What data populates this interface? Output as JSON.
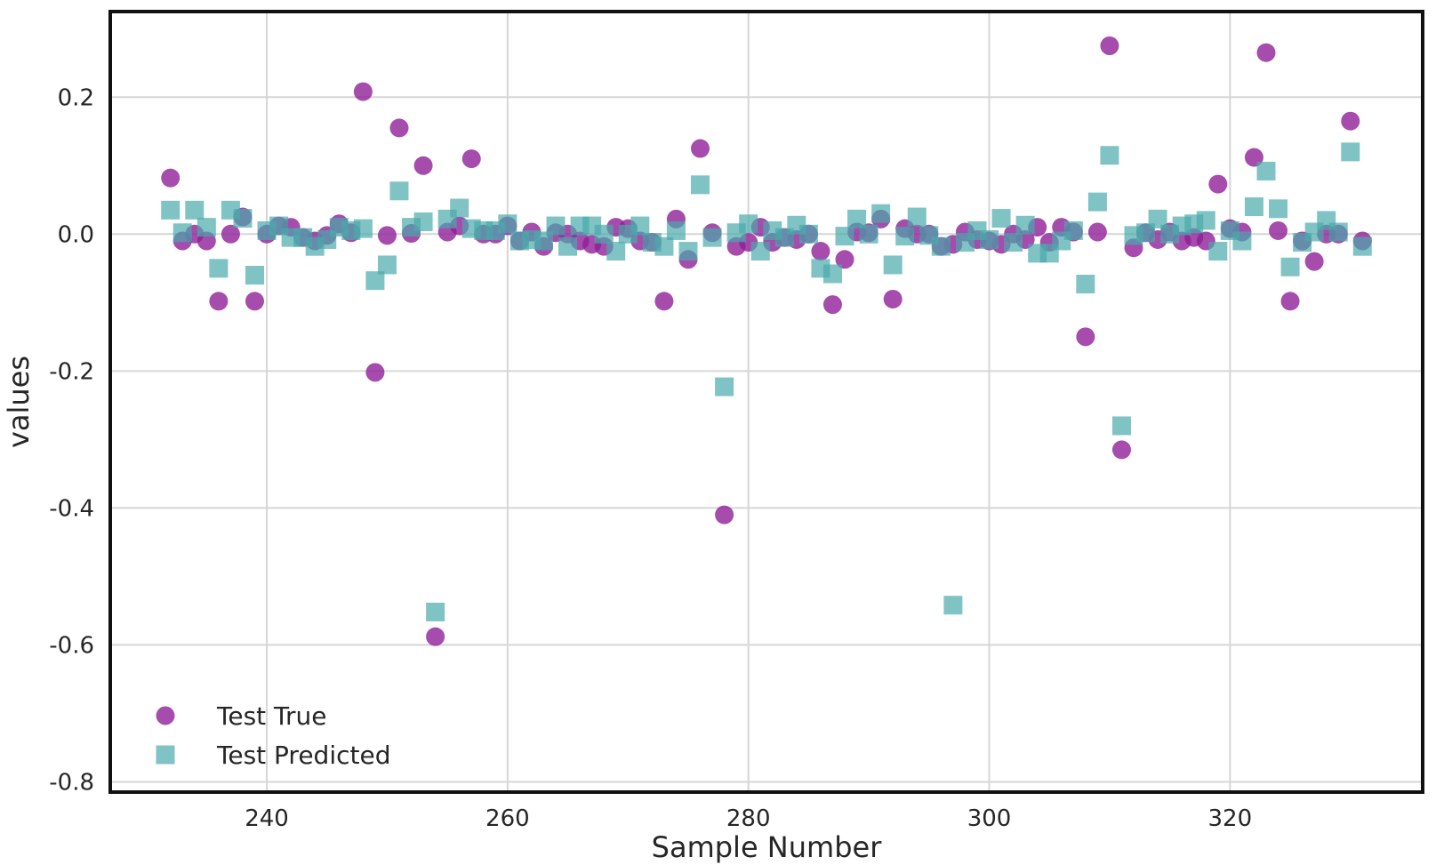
{
  "chart_data": {
    "type": "scatter",
    "title": "",
    "xlabel": "Sample Number",
    "ylabel": "values",
    "xlim": [
      227,
      336
    ],
    "ylim": [
      -0.815,
      0.325
    ],
    "xticks": [
      240,
      260,
      280,
      300,
      320
    ],
    "xtick_labels": [
      "240",
      "260",
      "280",
      "300",
      "320"
    ],
    "yticks": [
      0.2,
      0.0,
      -0.2,
      -0.4,
      -0.6,
      -0.8
    ],
    "ytick_labels": [
      "0.2",
      "0.0",
      "-0.2",
      "-0.4",
      "-0.6",
      "-0.8"
    ],
    "grid": true,
    "legend_position": "lower-left",
    "series": [
      {
        "name": "Test True",
        "marker": "circle",
        "color": "#8e1f97",
        "x": [
          232,
          233,
          234,
          235,
          236,
          237,
          238,
          239,
          240,
          241,
          242,
          243,
          244,
          245,
          246,
          247,
          248,
          249,
          250,
          251,
          252,
          253,
          254,
          255,
          256,
          257,
          258,
          259,
          260,
          261,
          262,
          263,
          264,
          265,
          266,
          267,
          268,
          269,
          270,
          271,
          272,
          273,
          274,
          275,
          276,
          277,
          278,
          279,
          280,
          281,
          282,
          283,
          284,
          285,
          286,
          287,
          288,
          289,
          290,
          291,
          292,
          293,
          294,
          295,
          296,
          297,
          298,
          299,
          300,
          301,
          302,
          303,
          304,
          305,
          306,
          307,
          308,
          309,
          310,
          311,
          312,
          313,
          314,
          315,
          316,
          317,
          318,
          319,
          320,
          321,
          322,
          323,
          324,
          325,
          326,
          327,
          328,
          329,
          330,
          331
        ],
        "values": [
          0.082,
          -0.01,
          0.0,
          -0.01,
          -0.098,
          0.0,
          0.025,
          -0.098,
          0.0,
          0.012,
          0.01,
          -0.005,
          -0.01,
          -0.002,
          0.015,
          0.002,
          0.208,
          -0.202,
          -0.002,
          0.155,
          0.001,
          0.1,
          -0.588,
          0.003,
          0.012,
          0.11,
          0.0,
          0.0,
          0.012,
          -0.01,
          0.003,
          -0.018,
          0.002,
          0.0,
          -0.01,
          -0.015,
          -0.018,
          0.01,
          0.008,
          -0.01,
          -0.012,
          -0.098,
          0.022,
          -0.037,
          0.125,
          0.002,
          -0.41,
          -0.018,
          -0.012,
          0.01,
          -0.012,
          -0.005,
          -0.008,
          0.0,
          -0.025,
          -0.103,
          -0.037,
          0.003,
          0.002,
          0.022,
          -0.095,
          0.008,
          0.0,
          0.0,
          -0.018,
          -0.015,
          0.003,
          -0.008,
          -0.01,
          -0.015,
          0.0,
          -0.008,
          0.01,
          -0.012,
          0.01,
          0.003,
          -0.15,
          0.003,
          0.275,
          -0.315,
          -0.02,
          0.002,
          -0.008,
          0.003,
          -0.01,
          -0.005,
          -0.01,
          0.073,
          0.008,
          0.003,
          0.112,
          0.265,
          0.005,
          -0.098,
          -0.01,
          -0.04,
          0.0,
          0.0,
          0.165,
          -0.01
        ]
      },
      {
        "name": "Test Predicted",
        "marker": "square",
        "color": "#4aa9ab",
        "x": [
          232,
          233,
          234,
          235,
          236,
          237,
          238,
          239,
          240,
          241,
          242,
          243,
          244,
          245,
          246,
          247,
          248,
          249,
          250,
          251,
          252,
          253,
          254,
          255,
          256,
          257,
          258,
          259,
          260,
          261,
          262,
          263,
          264,
          265,
          266,
          267,
          268,
          269,
          270,
          271,
          272,
          273,
          274,
          275,
          276,
          277,
          278,
          279,
          280,
          281,
          282,
          283,
          284,
          285,
          286,
          287,
          288,
          289,
          290,
          291,
          292,
          293,
          294,
          295,
          296,
          297,
          298,
          299,
          300,
          301,
          302,
          303,
          304,
          305,
          306,
          307,
          308,
          309,
          310,
          311,
          312,
          313,
          314,
          315,
          316,
          317,
          318,
          319,
          320,
          321,
          322,
          323,
          324,
          325,
          326,
          327,
          328,
          329,
          330,
          331
        ],
        "values": [
          0.035,
          0.002,
          0.035,
          0.01,
          -0.05,
          0.035,
          0.023,
          -0.06,
          0.005,
          0.012,
          -0.005,
          -0.005,
          -0.018,
          -0.008,
          0.01,
          0.005,
          0.008,
          -0.068,
          -0.045,
          0.063,
          0.01,
          0.018,
          -0.552,
          0.022,
          0.038,
          0.008,
          0.005,
          0.005,
          0.015,
          -0.01,
          -0.008,
          -0.01,
          0.012,
          -0.018,
          0.012,
          0.012,
          0.0,
          -0.025,
          0.0,
          0.012,
          -0.012,
          -0.018,
          0.005,
          -0.025,
          0.072,
          -0.005,
          -0.223,
          0.002,
          0.015,
          -0.025,
          0.005,
          -0.005,
          0.013,
          0.0,
          -0.05,
          -0.058,
          -0.003,
          0.022,
          0.0,
          0.03,
          -0.045,
          -0.003,
          0.025,
          -0.002,
          -0.018,
          -0.542,
          -0.012,
          0.005,
          -0.008,
          0.023,
          -0.012,
          0.013,
          -0.028,
          -0.028,
          -0.01,
          0.005,
          -0.073,
          0.047,
          0.115,
          -0.28,
          -0.002,
          0.002,
          0.022,
          0.0,
          0.012,
          0.015,
          0.02,
          -0.025,
          0.005,
          -0.01,
          0.04,
          0.092,
          0.037,
          -0.048,
          -0.012,
          0.003,
          0.02,
          0.003,
          0.12,
          -0.018
        ]
      }
    ]
  }
}
